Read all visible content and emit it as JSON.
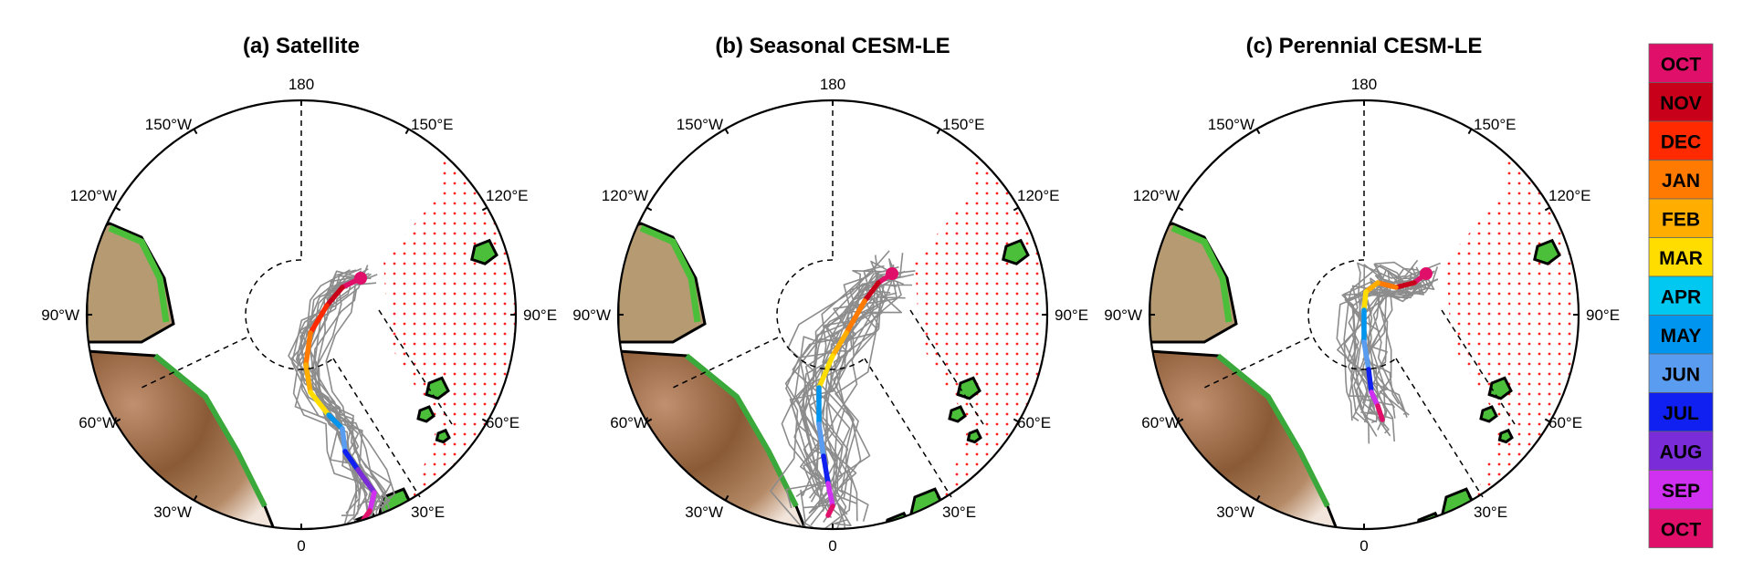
{
  "panels": [
    {
      "id": "a",
      "title": "(a)   Satellite",
      "labels": {
        "top": "180",
        "bottom": "0",
        "w150": "150°W",
        "e150": "150°E",
        "w120": "120°W",
        "e120": "120°E",
        "w90": "90°W",
        "e90": "90°E",
        "w60": "60°W",
        "e60": "60°E",
        "w30": "30°W",
        "e30": "30°E"
      },
      "mean_track": [
        [
          65,
          -40
        ],
        [
          45,
          -30
        ],
        [
          28,
          -10
        ],
        [
          10,
          20
        ],
        [
          5,
          55
        ],
        [
          10,
          85
        ],
        [
          30,
          110
        ],
        [
          45,
          125
        ],
        [
          48,
          150
        ],
        [
          62,
          170
        ],
        [
          80,
          195
        ],
        [
          75,
          215
        ],
        [
          68,
          225
        ]
      ],
      "spread": 40,
      "n_tracks": 20
    },
    {
      "id": "b",
      "title": "(b)  Seasonal CESM-LE",
      "labels": {
        "top": "180",
        "bottom": "0",
        "w150": "150°W",
        "e150": "150°E",
        "w120": "120°W",
        "e120": "120°E",
        "w90": "90°W",
        "e90": "90°E",
        "w60": "60°W",
        "e60": "60°E",
        "w30": "30°W",
        "e30": "30°E"
      },
      "mean_track": [
        [
          65,
          -45
        ],
        [
          50,
          -35
        ],
        [
          35,
          -15
        ],
        [
          15,
          20
        ],
        [
          0,
          45
        ],
        [
          -15,
          80
        ],
        [
          -15,
          120
        ],
        [
          -10,
          155
        ],
        [
          -5,
          185
        ],
        [
          0,
          210
        ],
        [
          -5,
          220
        ]
      ],
      "spread": 70,
      "n_tracks": 28
    },
    {
      "id": "c",
      "title": "(c)  Perennial CESM-LE",
      "labels": {
        "top": "180",
        "bottom": "0",
        "w150": "150°W",
        "e150": "150°E",
        "w120": "120°W",
        "e120": "120°E",
        "w90": "90°W",
        "e90": "90°E",
        "w60": "60°W",
        "e60": "60°E",
        "w30": "30°W",
        "e30": "30°E"
      },
      "mean_track": [
        [
          68,
          -45
        ],
        [
          55,
          -35
        ],
        [
          35,
          -30
        ],
        [
          15,
          -35
        ],
        [
          2,
          -25
        ],
        [
          0,
          -5
        ],
        [
          0,
          30
        ],
        [
          5,
          60
        ],
        [
          8,
          85
        ],
        [
          15,
          100
        ],
        [
          20,
          115
        ]
      ],
      "spread": 45,
      "n_tracks": 24
    }
  ],
  "legend": [
    {
      "label": "OCT",
      "color": "#e0106a"
    },
    {
      "label": "NOV",
      "color": "#c8001a"
    },
    {
      "label": "DEC",
      "color": "#ff2a00"
    },
    {
      "label": "JAN",
      "color": "#ff7a00"
    },
    {
      "label": "FEB",
      "color": "#ffae00"
    },
    {
      "label": "MAR",
      "color": "#ffdd00"
    },
    {
      "label": "APR",
      "color": "#00c8f0"
    },
    {
      "label": "MAY",
      "color": "#0096f0"
    },
    {
      "label": "JUN",
      "color": "#5a9cf0"
    },
    {
      "label": "JUL",
      "color": "#1020f0"
    },
    {
      "label": "AUG",
      "color": "#7a2cd8"
    },
    {
      "label": "SEP",
      "color": "#d030f0"
    },
    {
      "label": "OCT",
      "color": "#e0106a"
    }
  ]
}
